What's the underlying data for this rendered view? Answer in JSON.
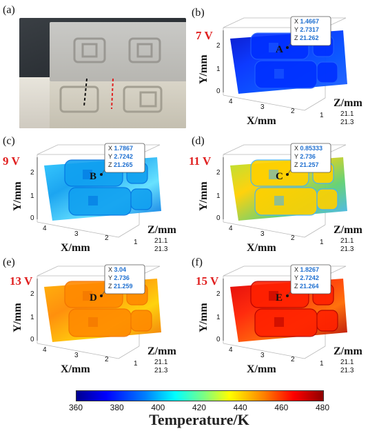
{
  "panels": [
    {
      "letter": "(a)"
    },
    {
      "letter": "(b)",
      "voltage": "7 V",
      "point": "A",
      "tip": {
        "x": "X 1.4667",
        "y": "Y 2.7317",
        "z": "Z 21.262"
      },
      "color_stops": [
        "#0010c8",
        "#0030ff",
        "#0050ff",
        "#2060ff"
      ]
    },
    {
      "letter": "(c)",
      "voltage": "9 V",
      "point": "B",
      "tip": {
        "x": "X 1.7867",
        "y": "Y 2.7242",
        "z": "Z 21.265"
      },
      "color_stops": [
        "#30c8ff",
        "#10a0f0",
        "#60e0ff",
        "#0070e0"
      ]
    },
    {
      "letter": "(d)",
      "voltage": "11 V",
      "point": "C",
      "tip": {
        "x": "X 0.85333",
        "y": "Y 2.736",
        "z": "Z 21.257"
      },
      "color_stops": [
        "#b0e030",
        "#ffd000",
        "#60d070",
        "#40b0ff"
      ]
    },
    {
      "letter": "(e)",
      "voltage": "13 V",
      "point": "D",
      "tip": {
        "x": "X 3.04",
        "y": "Y 2.736",
        "z": "Z 21.259"
      },
      "color_stops": [
        "#ffb000",
        "#ff8a00",
        "#ffd000",
        "#f07000"
      ]
    },
    {
      "letter": "(f)",
      "voltage": "15 V",
      "point": "E",
      "tip": {
        "x": "X 1.8267",
        "y": "Y 2.7242",
        "z": "Z 21.264"
      },
      "color_stops": [
        "#e00000",
        "#ff2000",
        "#ff6a00",
        "#b00000"
      ]
    }
  ],
  "axes": {
    "xlabel": "X/mm",
    "ylabel": "Y/mm",
    "zlabel": "Z/mm",
    "xticks": [
      "4",
      "3",
      "2",
      "1"
    ],
    "yticks": [
      "0",
      "1",
      "2"
    ],
    "zticks": [
      "21.1",
      "21.3"
    ]
  },
  "colorbar": {
    "label": "Temperature/K",
    "ticks": [
      "360",
      "380",
      "400",
      "420",
      "440",
      "460",
      "480"
    ],
    "range": [
      360,
      480
    ]
  }
}
